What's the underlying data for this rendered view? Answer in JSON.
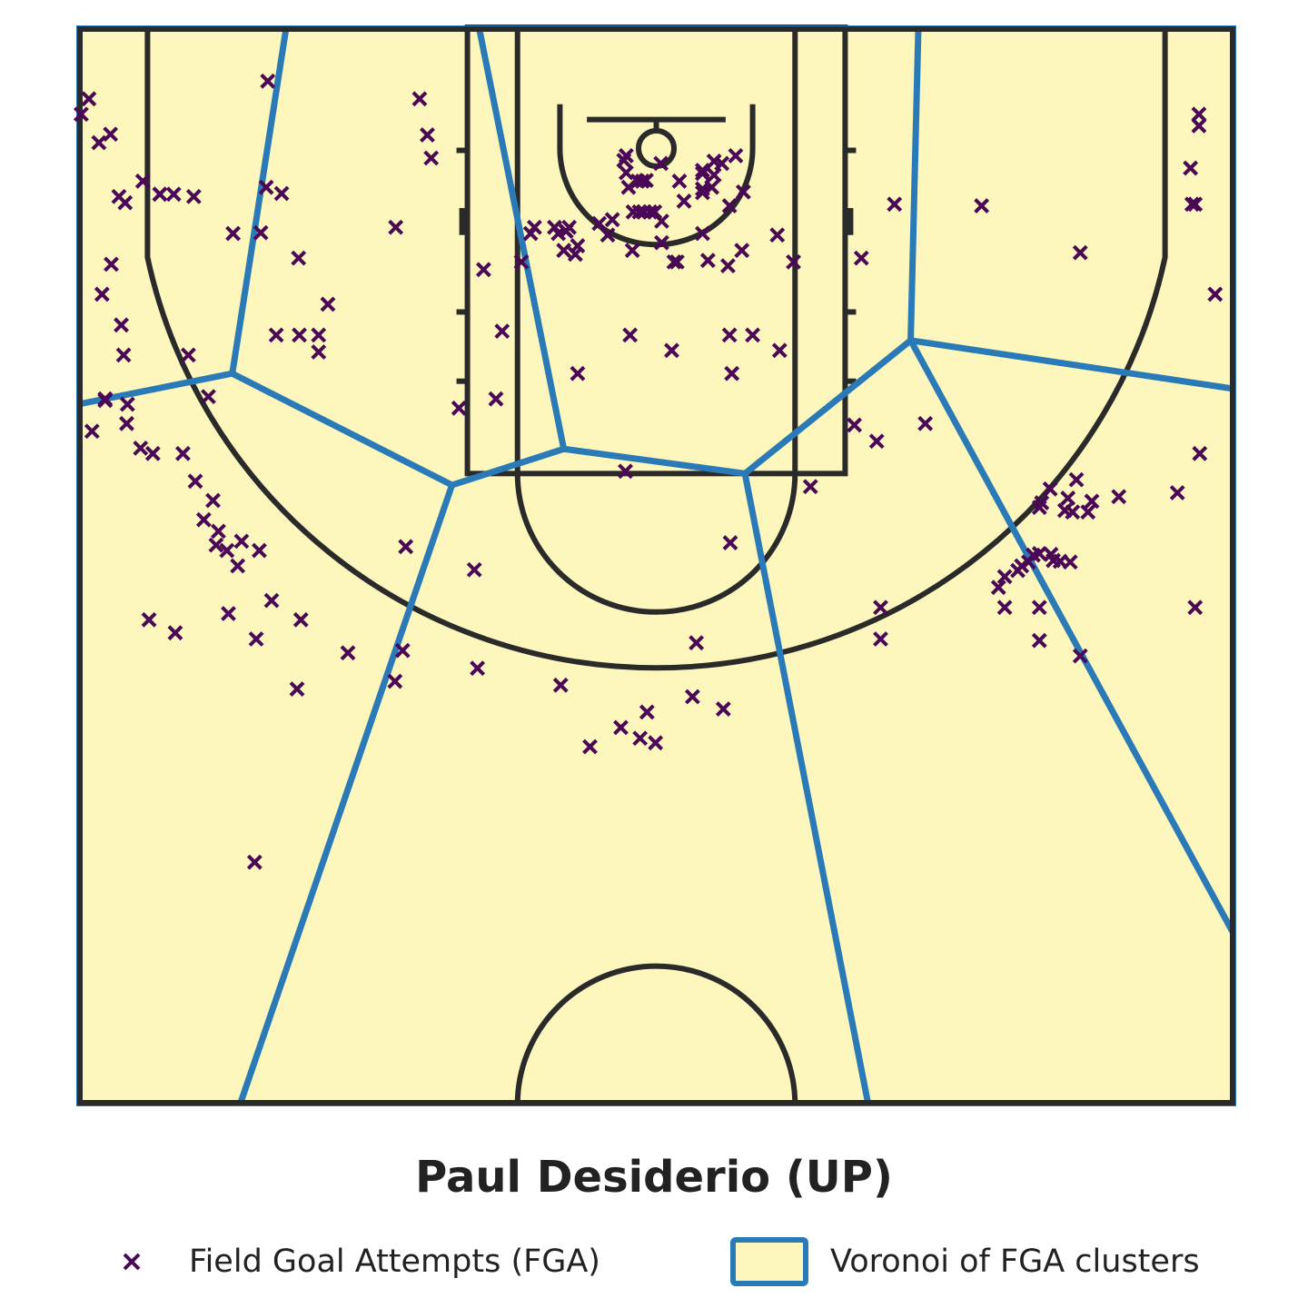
{
  "chart_data": {
    "type": "scatter",
    "title": "Paul Desiderio (UP)",
    "xlabel": "",
    "ylabel": "",
    "grid": false,
    "legend_position": "bottom",
    "legend": [
      "Field Goal Attempts (FGA)",
      "Voronoi of FGA clusters"
    ],
    "colors": {
      "court_fill": "#fdf6bd",
      "court_lines": "#2a2a2a",
      "voronoi": "#2a7ab8",
      "fga_marker": "#4b0857"
    },
    "x_range": [
      -7.5,
      7.5
    ],
    "y_range": [
      0,
      14
    ],
    "series": [
      {
        "name": "Field Goal Attempts (FGA)",
        "marker": "x",
        "points": [
          [
            -7.46,
            12.87
          ],
          [
            -7.36,
            13.07
          ],
          [
            -7.23,
            12.5
          ],
          [
            -7.08,
            12.61
          ],
          [
            -6.97,
            11.8
          ],
          [
            -6.89,
            11.72
          ],
          [
            -6.66,
            12.0
          ],
          [
            -6.44,
            11.83
          ],
          [
            -6.44,
            11.83
          ],
          [
            -6.26,
            11.83
          ],
          [
            -6.0,
            11.8
          ],
          [
            -5.04,
            13.3
          ],
          [
            -7.07,
            10.92
          ],
          [
            -7.19,
            10.53
          ],
          [
            -6.94,
            10.13
          ],
          [
            -6.91,
            9.74
          ],
          [
            -6.87,
            8.85
          ],
          [
            -6.07,
            9.74
          ],
          [
            -5.49,
            11.32
          ],
          [
            -5.13,
            11.33
          ],
          [
            -5.06,
            11.92
          ],
          [
            -4.86,
            11.84
          ],
          [
            -4.64,
            11.0
          ],
          [
            -4.26,
            10.4
          ],
          [
            -4.93,
            10.0
          ],
          [
            -4.63,
            10.0
          ],
          [
            -4.38,
            10.0
          ],
          [
            -4.38,
            9.78
          ],
          [
            -5.81,
            9.2
          ],
          [
            -7.15,
            9.15
          ],
          [
            -7.15,
            9.17
          ],
          [
            -7.32,
            8.75
          ],
          [
            -6.69,
            8.53
          ],
          [
            -6.86,
            9.1
          ],
          [
            -6.53,
            8.46
          ],
          [
            -6.14,
            8.46
          ],
          [
            -5.98,
            8.1
          ],
          [
            -5.75,
            7.85
          ],
          [
            -5.87,
            7.6
          ],
          [
            -5.68,
            7.45
          ],
          [
            -5.71,
            7.27
          ],
          [
            -5.57,
            7.2
          ],
          [
            -5.38,
            7.32
          ],
          [
            -5.15,
            7.2
          ],
          [
            -5.43,
            7.0
          ],
          [
            -4.99,
            6.55
          ],
          [
            -4.61,
            6.3
          ],
          [
            -5.55,
            6.38
          ],
          [
            -5.19,
            6.05
          ],
          [
            -6.24,
            6.13
          ],
          [
            -6.58,
            6.3
          ],
          [
            -4.0,
            5.87
          ],
          [
            -3.29,
            5.9
          ],
          [
            -4.66,
            5.4
          ],
          [
            -3.39,
            5.5
          ],
          [
            -3.25,
            7.25
          ],
          [
            -2.32,
            5.67
          ],
          [
            -1.24,
            5.45
          ],
          [
            -0.86,
            4.65
          ],
          [
            -0.46,
            4.9
          ],
          [
            -0.12,
            5.1
          ],
          [
            0.47,
            5.3
          ],
          [
            0.87,
            5.14
          ],
          [
            -0.21,
            4.76
          ],
          [
            -0.01,
            4.7
          ],
          [
            0.52,
            6.0
          ],
          [
            -3.38,
            11.4
          ],
          [
            -2.92,
            12.3
          ],
          [
            -2.97,
            12.6
          ],
          [
            -3.07,
            13.07
          ],
          [
            -2.24,
            10.85
          ],
          [
            -2.0,
            10.05
          ],
          [
            -2.08,
            9.17
          ],
          [
            -1.75,
            10.95
          ],
          [
            -1.58,
            11.4
          ],
          [
            -1.32,
            11.4
          ],
          [
            -1.17,
            11.35
          ],
          [
            -1.17,
            11.35
          ],
          [
            -1.13,
            11.4
          ],
          [
            -1.02,
            11.16
          ],
          [
            -1.05,
            11.05
          ],
          [
            -0.74,
            11.45
          ],
          [
            -0.63,
            11.3
          ],
          [
            -0.42,
            12.27
          ],
          [
            -0.39,
            12.33
          ],
          [
            -0.39,
            12.11
          ],
          [
            -0.36,
            11.92
          ],
          [
            -0.24,
            12.0
          ],
          [
            -0.18,
            12.0
          ],
          [
            -0.13,
            12.01
          ],
          [
            0.06,
            12.23
          ],
          [
            -0.02,
            11.6
          ],
          [
            -0.08,
            11.6
          ],
          [
            -0.16,
            11.6
          ],
          [
            -0.22,
            11.6
          ],
          [
            -0.3,
            11.6
          ],
          [
            0.07,
            11.48
          ],
          [
            -0.57,
            11.5
          ],
          [
            0.07,
            11.2
          ],
          [
            0.36,
            11.74
          ],
          [
            0.6,
            11.85
          ],
          [
            0.6,
            11.9
          ],
          [
            0.3,
            12.0
          ],
          [
            0.6,
            12.1
          ],
          [
            0.6,
            12.14
          ],
          [
            0.75,
            12.26
          ],
          [
            0.75,
            12.08
          ],
          [
            0.85,
            12.23
          ],
          [
            1.03,
            12.33
          ],
          [
            0.72,
            11.92
          ],
          [
            1.13,
            11.86
          ],
          [
            0.6,
            11.32
          ],
          [
            0.67,
            10.97
          ],
          [
            0.93,
            10.9
          ],
          [
            1.11,
            11.1
          ],
          [
            0.23,
            10.95
          ],
          [
            0.27,
            10.95
          ],
          [
            -0.31,
            11.1
          ],
          [
            -1.63,
            11.32
          ],
          [
            -1.2,
            11.1
          ],
          [
            -0.34,
            10.0
          ],
          [
            0.2,
            9.8
          ],
          [
            0.95,
            10.0
          ],
          [
            1.25,
            10.0
          ],
          [
            1.6,
            9.8
          ],
          [
            1.78,
            10.95
          ],
          [
            1.57,
            11.3
          ],
          [
            2.66,
            11.0
          ],
          [
            0.98,
            9.5
          ],
          [
            -1.02,
            9.5
          ],
          [
            -2.56,
            9.05
          ],
          [
            -0.4,
            8.23
          ],
          [
            0.96,
            7.3
          ],
          [
            2.0,
            8.03
          ],
          [
            2.57,
            8.83
          ],
          [
            3.49,
            8.85
          ],
          [
            4.22,
            11.68
          ],
          [
            5.5,
            11.07
          ],
          [
            6.95,
            11.7
          ],
          [
            6.99,
            11.7
          ],
          [
            6.93,
            12.17
          ],
          [
            7.04,
            12.72
          ],
          [
            7.04,
            12.87
          ],
          [
            7.25,
            10.53
          ],
          [
            7.05,
            8.46
          ],
          [
            5.45,
            8.12
          ],
          [
            5.11,
            8.0
          ],
          [
            5.34,
            7.88
          ],
          [
            5.65,
            7.84
          ],
          [
            6.0,
            7.9
          ],
          [
            5.3,
            7.72
          ],
          [
            5.4,
            7.7
          ],
          [
            5.6,
            7.7
          ],
          [
            4.97,
            7.76
          ],
          [
            5.0,
            7.82
          ],
          [
            6.76,
            7.95
          ],
          [
            4.52,
            6.86
          ],
          [
            4.69,
            6.94
          ],
          [
            4.74,
            7.0
          ],
          [
            4.83,
            7.05
          ],
          [
            4.89,
            7.14
          ],
          [
            4.97,
            7.16
          ],
          [
            5.12,
            7.15
          ],
          [
            5.24,
            7.06
          ],
          [
            5.15,
            7.07
          ],
          [
            5.37,
            7.05
          ],
          [
            4.44,
            6.72
          ],
          [
            4.52,
            6.46
          ],
          [
            4.97,
            6.46
          ],
          [
            4.97,
            6.03
          ],
          [
            5.5,
            5.83
          ],
          [
            2.91,
            6.46
          ],
          [
            2.91,
            6.05
          ],
          [
            6.99,
            6.46
          ],
          [
            -5.21,
            3.15
          ],
          [
            -2.36,
            6.95
          ],
          [
            2.86,
            8.62
          ],
          [
            3.09,
            11.7
          ],
          [
            -1.27,
            11.32
          ],
          [
            0.95,
            11.68
          ]
        ]
      }
    ],
    "voronoi_edges": [
      [
        [
          -4.8,
          14
        ],
        [
          -5.5,
          9.5
        ]
      ],
      [
        [
          -5.5,
          9.5
        ],
        [
          -7.5,
          9.1
        ]
      ],
      [
        [
          -5.5,
          9.5
        ],
        [
          -2.65,
          8.05
        ]
      ],
      [
        [
          -2.65,
          8.05
        ],
        [
          -5.4,
          0
        ]
      ],
      [
        [
          -2.65,
          8.05
        ],
        [
          -1.2,
          8.52
        ]
      ],
      [
        [
          -1.2,
          8.52
        ],
        [
          -2.3,
          14
        ]
      ],
      [
        [
          -1.2,
          8.52
        ],
        [
          1.15,
          8.2
        ]
      ],
      [
        [
          1.15,
          8.2
        ],
        [
          3.3,
          9.93
        ]
      ],
      [
        [
          1.15,
          8.2
        ],
        [
          2.75,
          0
        ]
      ],
      [
        [
          3.3,
          9.93
        ],
        [
          3.4,
          14
        ]
      ],
      [
        [
          3.3,
          9.93
        ],
        [
          7.5,
          9.3
        ]
      ],
      [
        [
          3.3,
          9.93
        ],
        [
          7.5,
          2.2
        ]
      ]
    ]
  }
}
